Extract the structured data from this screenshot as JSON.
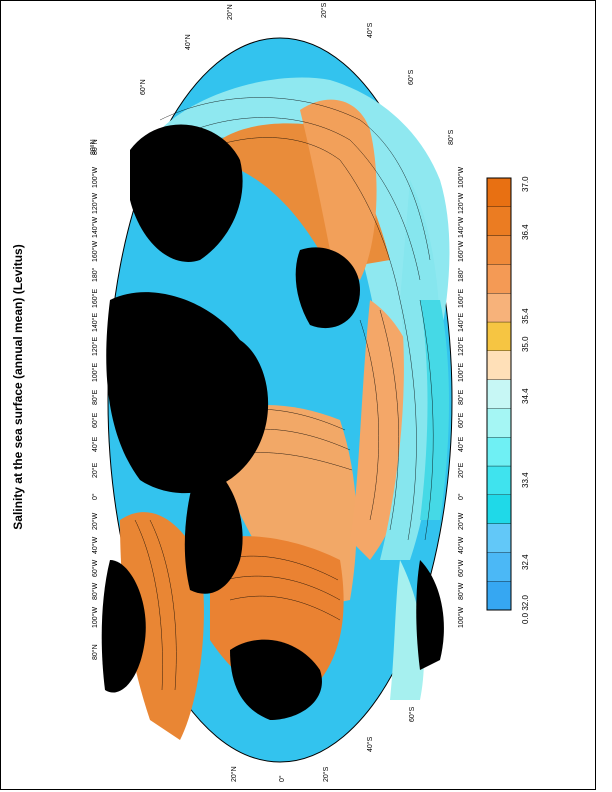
{
  "title": "Salinity at the sea surface (annual mean) (Levitus)",
  "map": {
    "projection": "ellipse world map, rotated 90 degrees",
    "top_latitude_labels": [
      "20°N",
      "40°N",
      "60°N",
      "80°N"
    ],
    "left_longitude_labels": [
      "100°W",
      "80°W",
      "60°W",
      "40°W",
      "20°W",
      "0°",
      "20°E",
      "40°E",
      "60°E",
      "80°E",
      "100°E",
      "120°E",
      "140°E",
      "160°E",
      "180°",
      "160°W",
      "140°W",
      "120°W",
      "100°W"
    ],
    "right_longitude_labels": [
      "100°W",
      "80°W",
      "60°W",
      "40°W",
      "20°W",
      "0°",
      "20°E",
      "40°E",
      "60°E",
      "80°E",
      "100°E",
      "120°E",
      "140°E",
      "160°E",
      "180°",
      "160°W",
      "140°W",
      "120°W",
      "100°W"
    ],
    "bottom_latitude_labels": [
      "20°N",
      "0°",
      "20°S",
      "40°S",
      "60°S"
    ],
    "top_right_labels": [
      "20°S",
      "40°S",
      "60°S",
      "80°S"
    ],
    "left_corner_labels": [
      "80°N",
      "80°N"
    ],
    "land_color": "#000000"
  },
  "colorbar": {
    "tick_labels": [
      "0.0 32.0",
      "32.4",
      "33.4",
      "34.4",
      "35.0",
      "35.4",
      "36.4",
      "37.0"
    ],
    "colors": [
      "#36a7f2",
      "#4bb8f6",
      "#62c8f8",
      "#1fd9e8",
      "#3fe3ee",
      "#6ff0f4",
      "#a5f6f4",
      "#c7f7f5",
      "#ffe0b8",
      "#f6c542",
      "#f7b27a",
      "#f49a55",
      "#ef8a3a",
      "#eb7c22",
      "#e87012"
    ]
  },
  "chart_data": {
    "type": "heatmap",
    "title": "Salinity at the sea surface (annual mean) (Levitus)",
    "colorbar_range": [
      32.0,
      37.0
    ],
    "colorbar_ticks": [
      32.0,
      32.4,
      33.4,
      34.4,
      35.0,
      35.4,
      36.4,
      37.0
    ]
  }
}
